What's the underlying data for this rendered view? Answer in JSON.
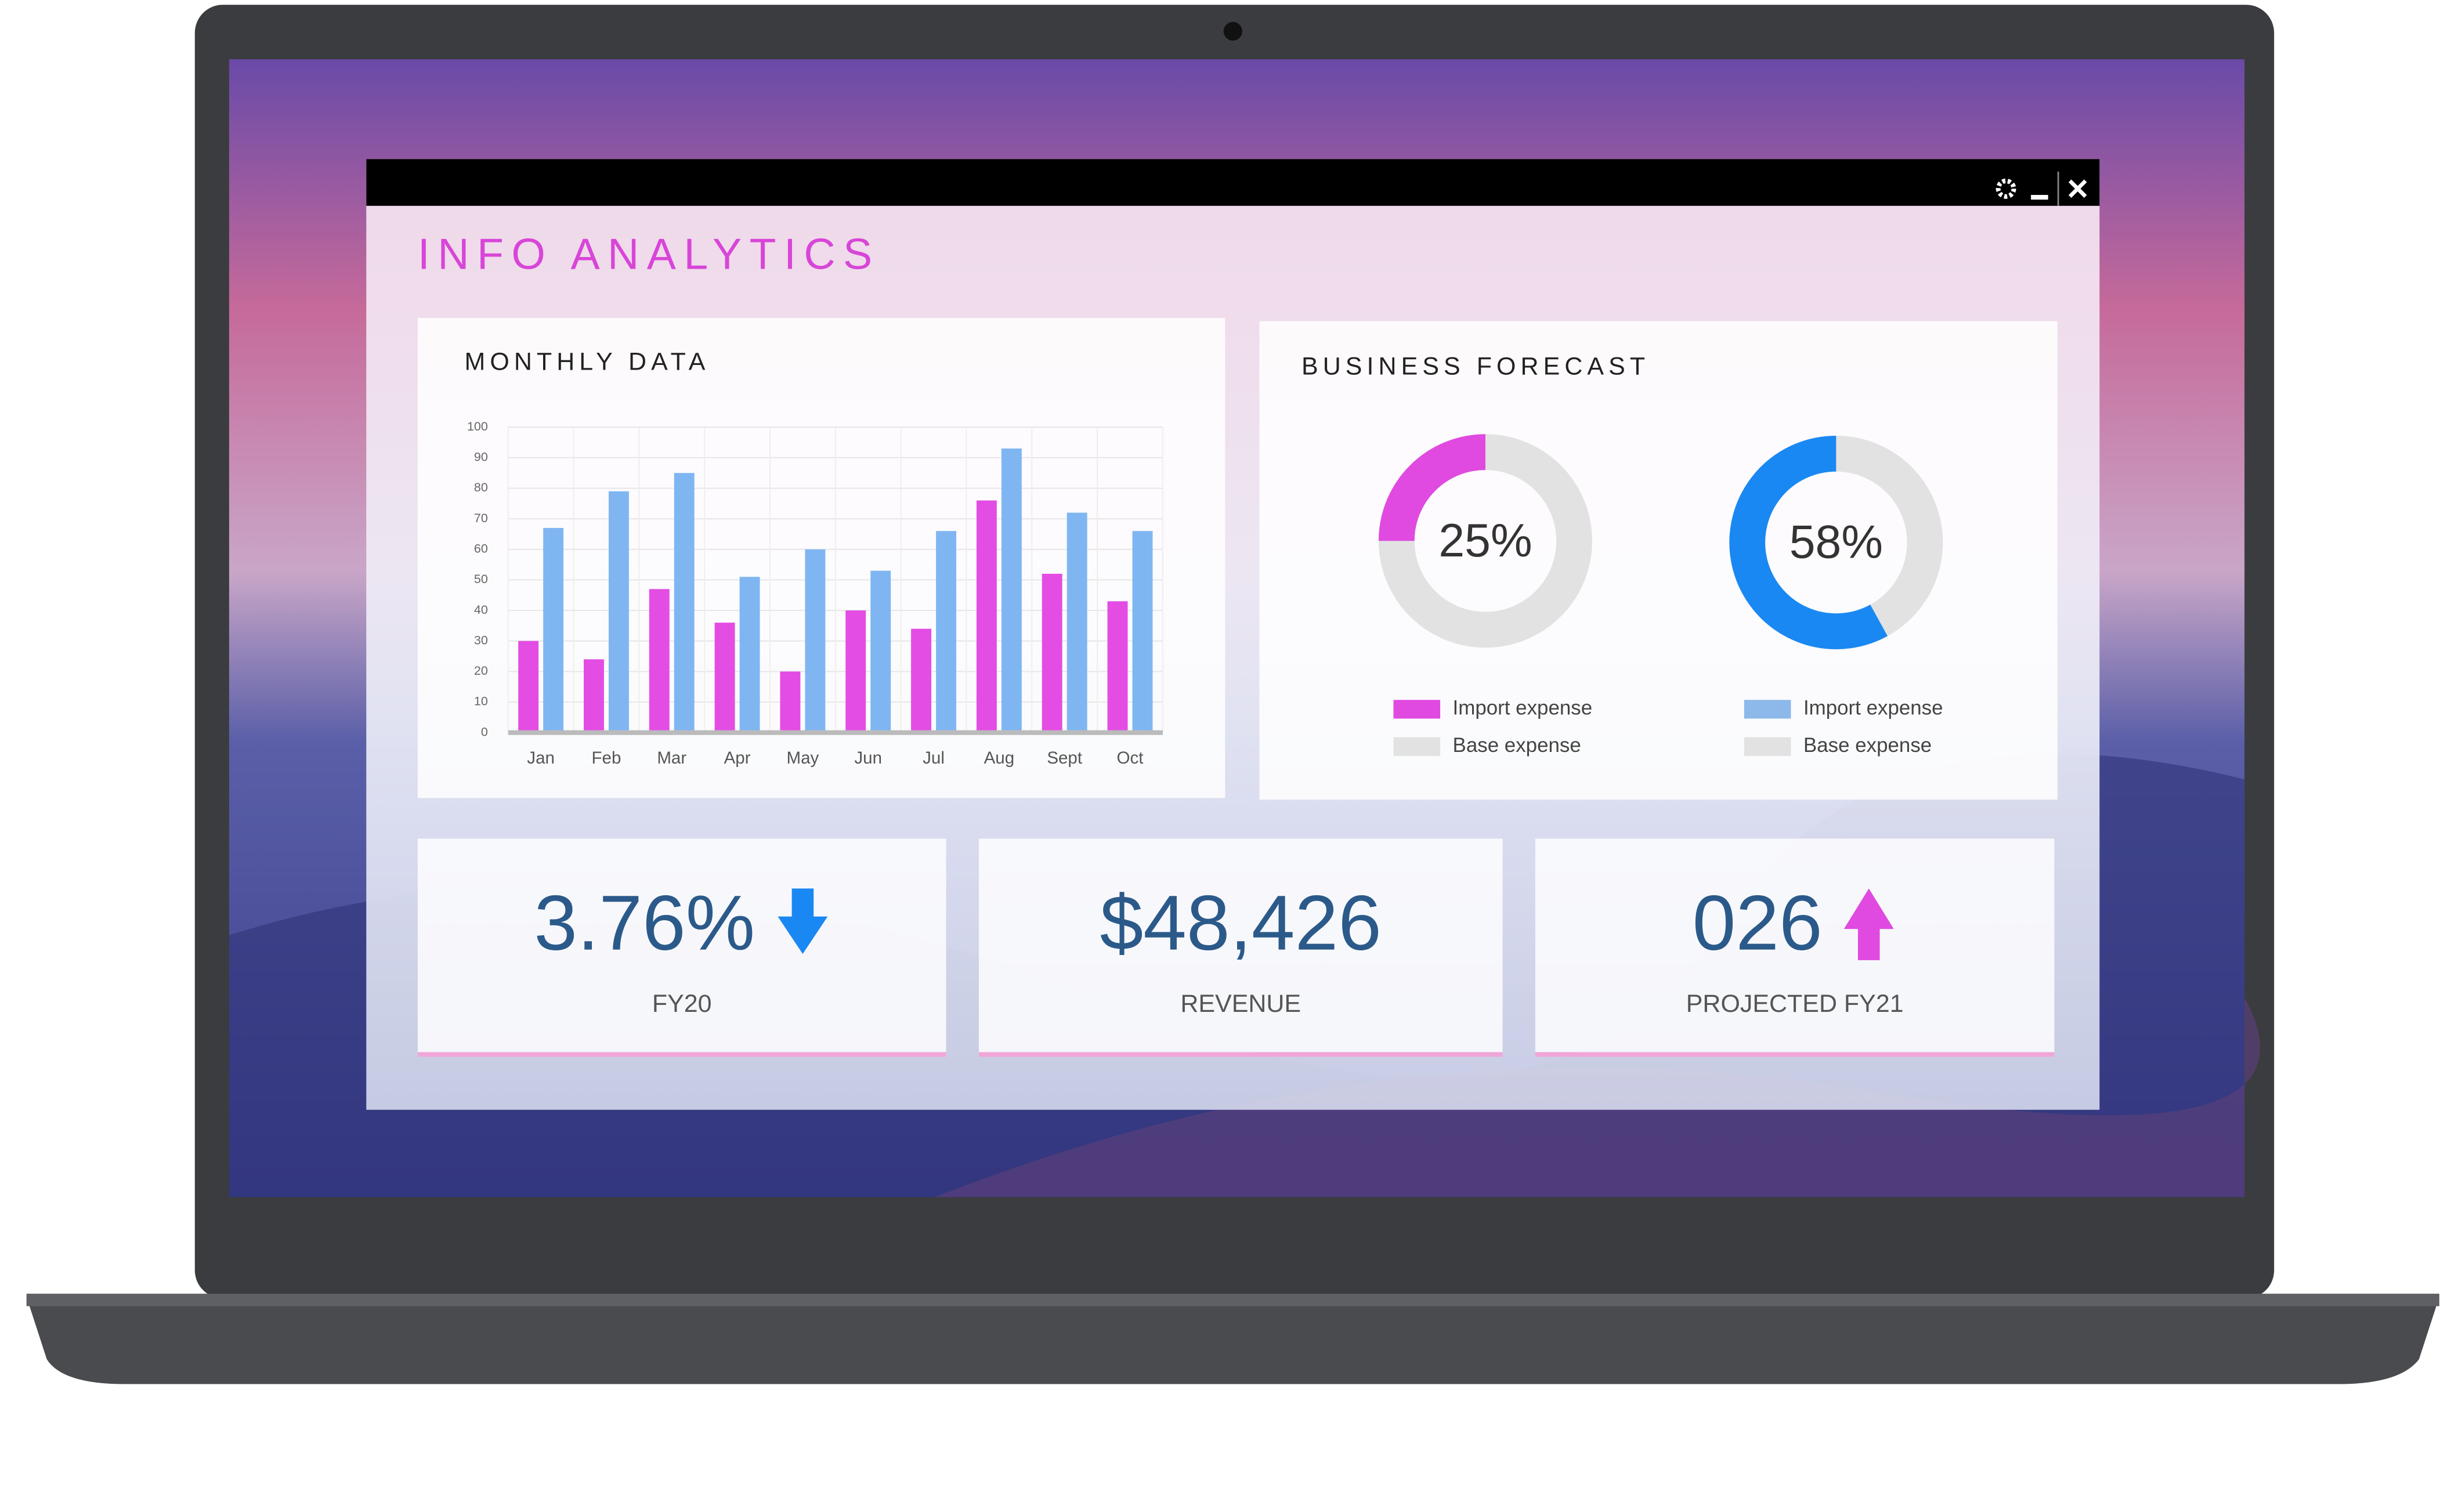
{
  "window": {
    "title": "INFO ANALYTICS"
  },
  "monthly_data": {
    "type": "bar",
    "title": "MONTHLY DATA",
    "categories": [
      "Jan",
      "Feb",
      "Mar",
      "Apr",
      "May",
      "Jun",
      "Jul",
      "Aug",
      "Sept",
      "Oct"
    ],
    "series": [
      {
        "color": "#e34de3",
        "values": [
          30,
          24,
          47,
          36,
          20,
          40,
          34,
          76,
          52,
          43
        ]
      },
      {
        "color": "#7fb6f2",
        "values": [
          67,
          79,
          85,
          51,
          60,
          53,
          66,
          93,
          72,
          66
        ]
      }
    ],
    "ylim": [
      0,
      100
    ],
    "yticks": [
      0,
      10,
      20,
      30,
      40,
      50,
      60,
      70,
      80,
      90,
      100
    ],
    "grid": true
  },
  "business_forecast": {
    "type": "pie",
    "title": "BUSINESS FORECAST",
    "donuts": [
      {
        "value": 25,
        "value_label": "25%",
        "color": "#e04ae0",
        "base_color": "#e2e2e2",
        "legend": [
          {
            "label": "Import expense",
            "color": "#e04ae0"
          },
          {
            "label": "Base expense",
            "color": "#e2e2e2"
          }
        ]
      },
      {
        "value": 58,
        "value_label": "58%",
        "color": "#1a88f2",
        "base_color": "#e2e2e2",
        "legend": [
          {
            "label": "Import expense",
            "color": "#8db8ea"
          },
          {
            "label": "Base expense",
            "color": "#e2e2e2"
          }
        ]
      }
    ]
  },
  "kpis": [
    {
      "value": "3.76%",
      "label": "FY20"
    },
    {
      "value": "$48,426",
      "label": "REVENUE"
    },
    {
      "value": "026",
      "label": "PROJECTED FY21"
    }
  ]
}
